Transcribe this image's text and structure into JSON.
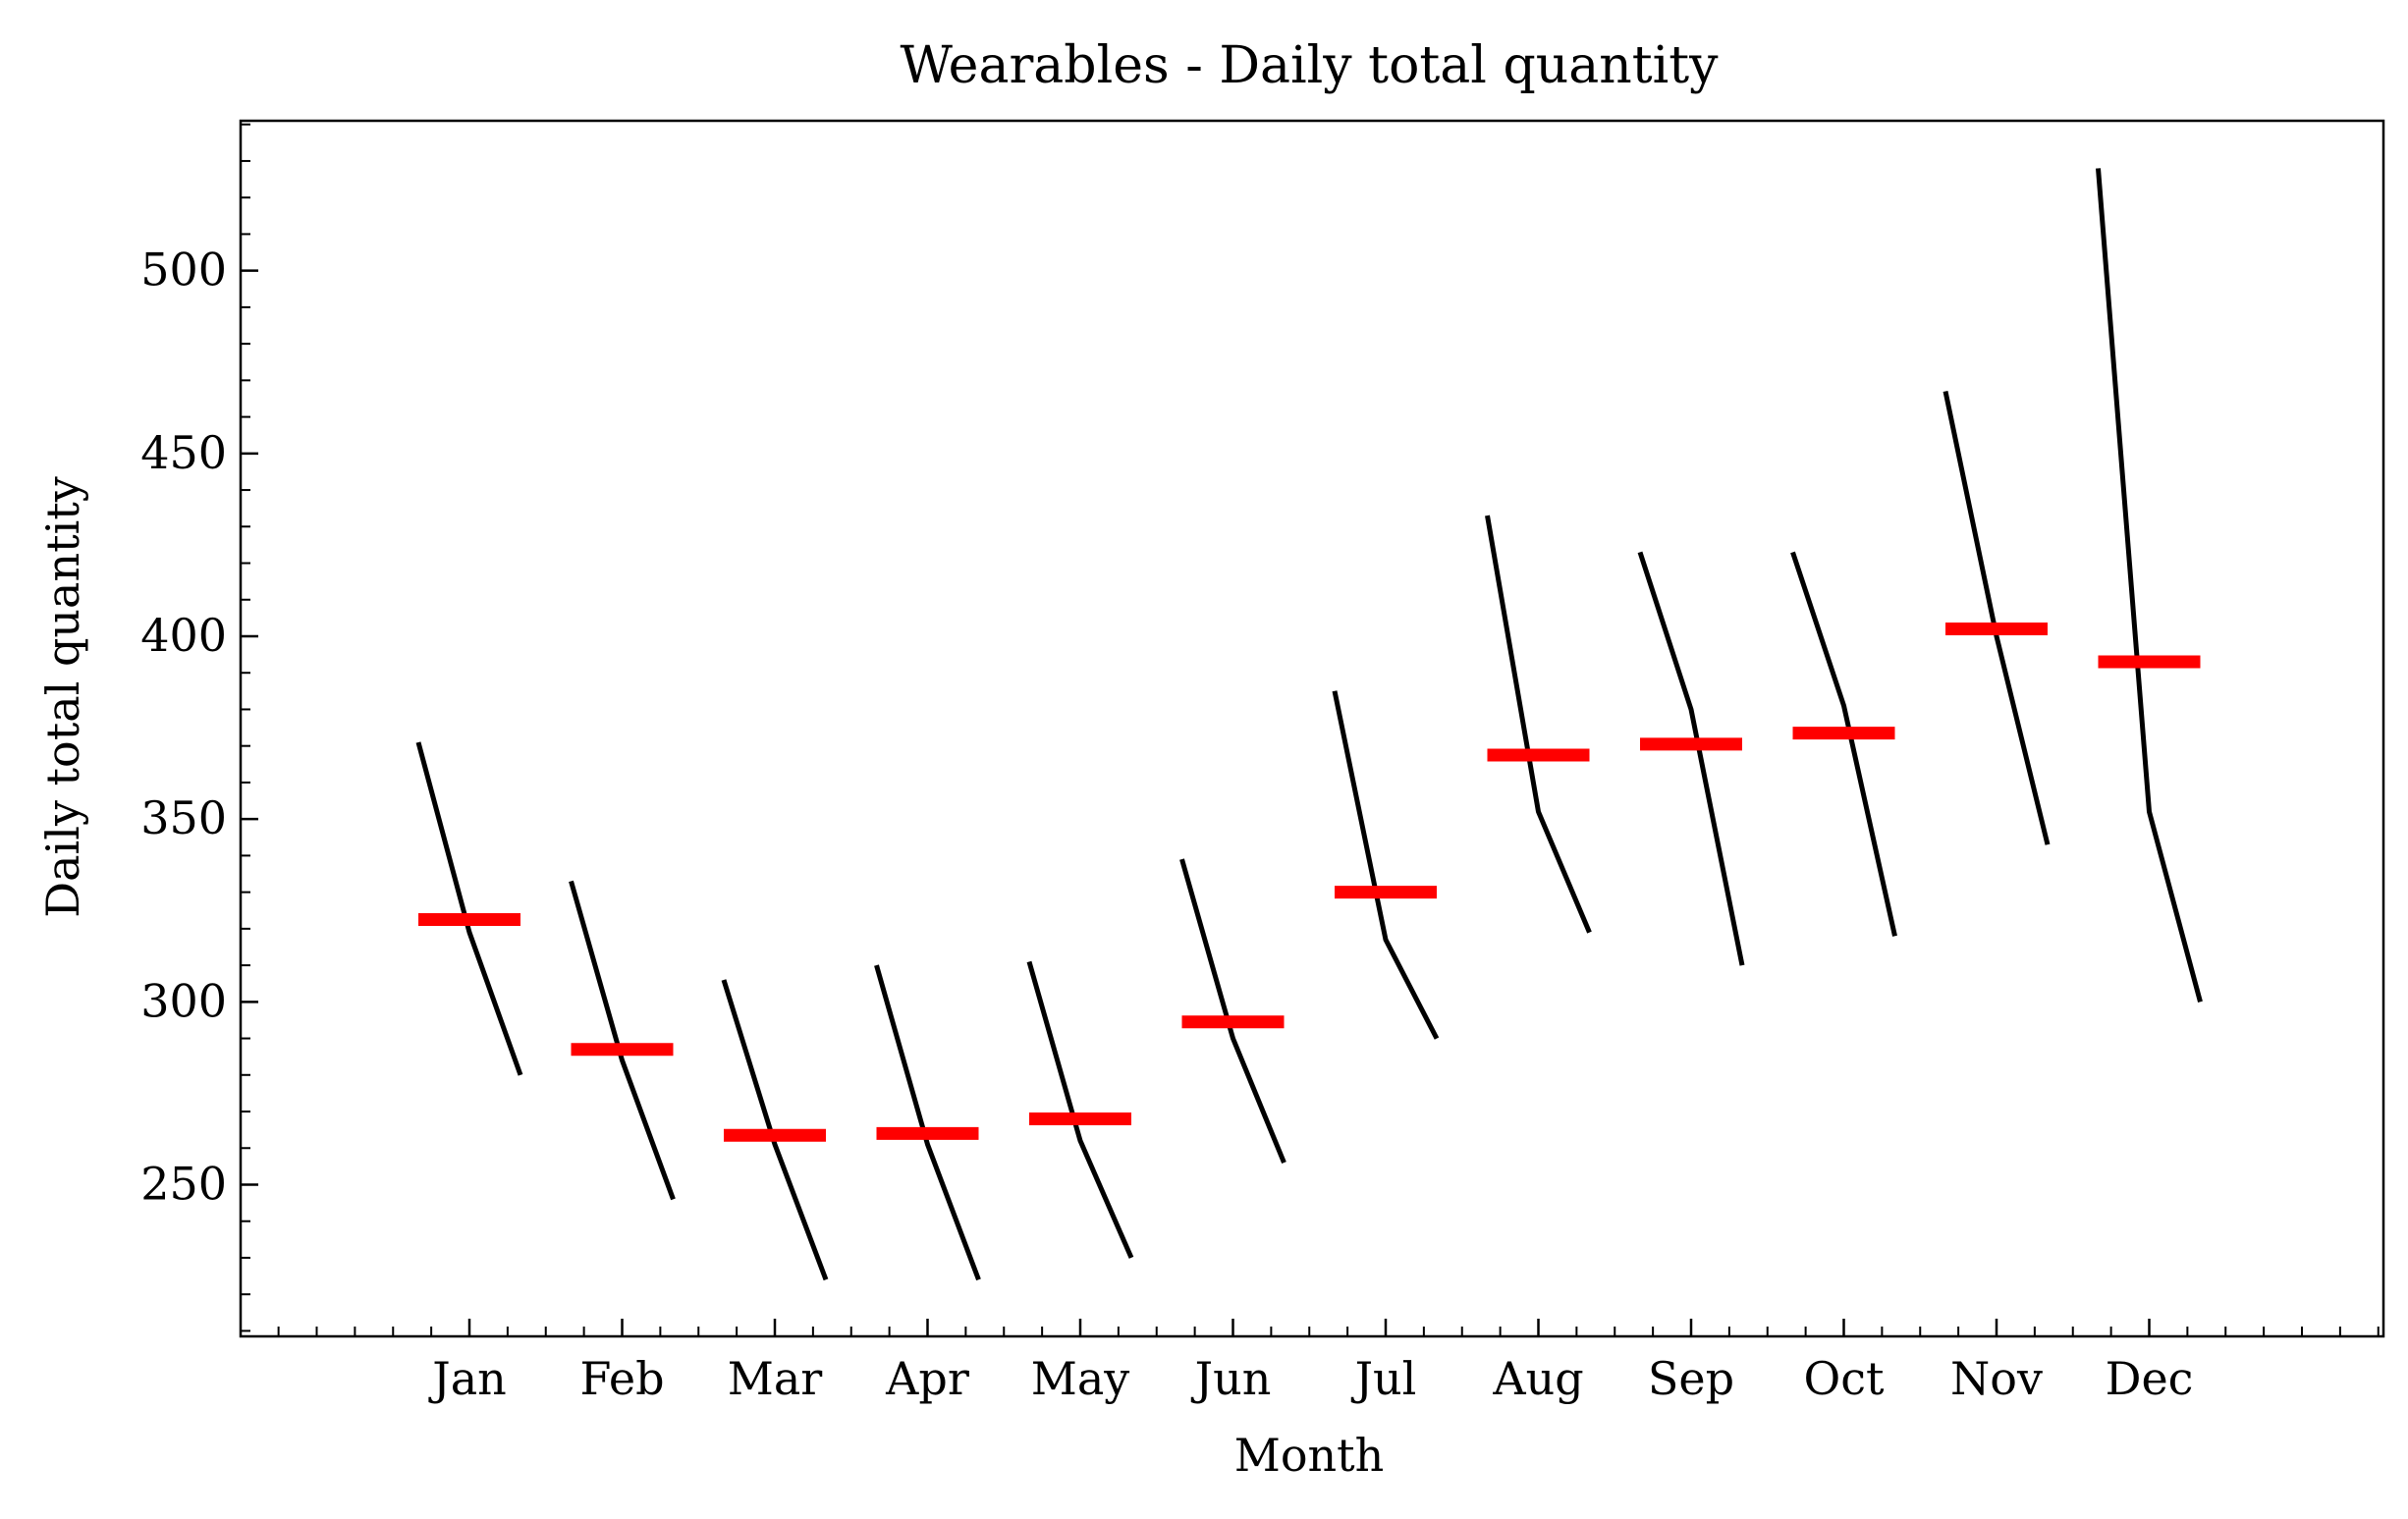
{
  "chart_data": {
    "type": "line",
    "subtype": "month-subseries",
    "title": "Wearables - Daily total quantity",
    "xlabel": "Month",
    "ylabel": "Daily total quantity",
    "categories": [
      "Jan",
      "Feb",
      "Mar",
      "Apr",
      "May",
      "Jun",
      "Jul",
      "Aug",
      "Sep",
      "Oct",
      "Nov",
      "Dec"
    ],
    "series": [
      {
        "values": [
          [
            371,
            319,
            280
          ],
          [
            333,
            284,
            246
          ],
          [
            306,
            261,
            224
          ],
          [
            310,
            261,
            224
          ],
          [
            311,
            262,
            230
          ],
          [
            339,
            290,
            256
          ],
          [
            385,
            317,
            290
          ],
          [
            433,
            352,
            319
          ],
          [
            423,
            380,
            310
          ],
          [
            423,
            381,
            318
          ],
          [
            467,
            400,
            343
          ],
          [
            528,
            352,
            300
          ]
        ]
      },
      {
        "values": [
          322.5,
          287,
          263.5,
          264,
          268,
          294.5,
          330,
          367.5,
          370.5,
          373.5,
          402,
          393
        ]
      }
    ],
    "ylim": [
      208.5,
      541
    ],
    "yticks": [
      250,
      300,
      350,
      400,
      450,
      500
    ],
    "yminor_step": 10,
    "grid": false,
    "legend": "none",
    "colors": {
      "line": "#000000",
      "mean": "#ff0000",
      "frame": "#000000"
    }
  }
}
